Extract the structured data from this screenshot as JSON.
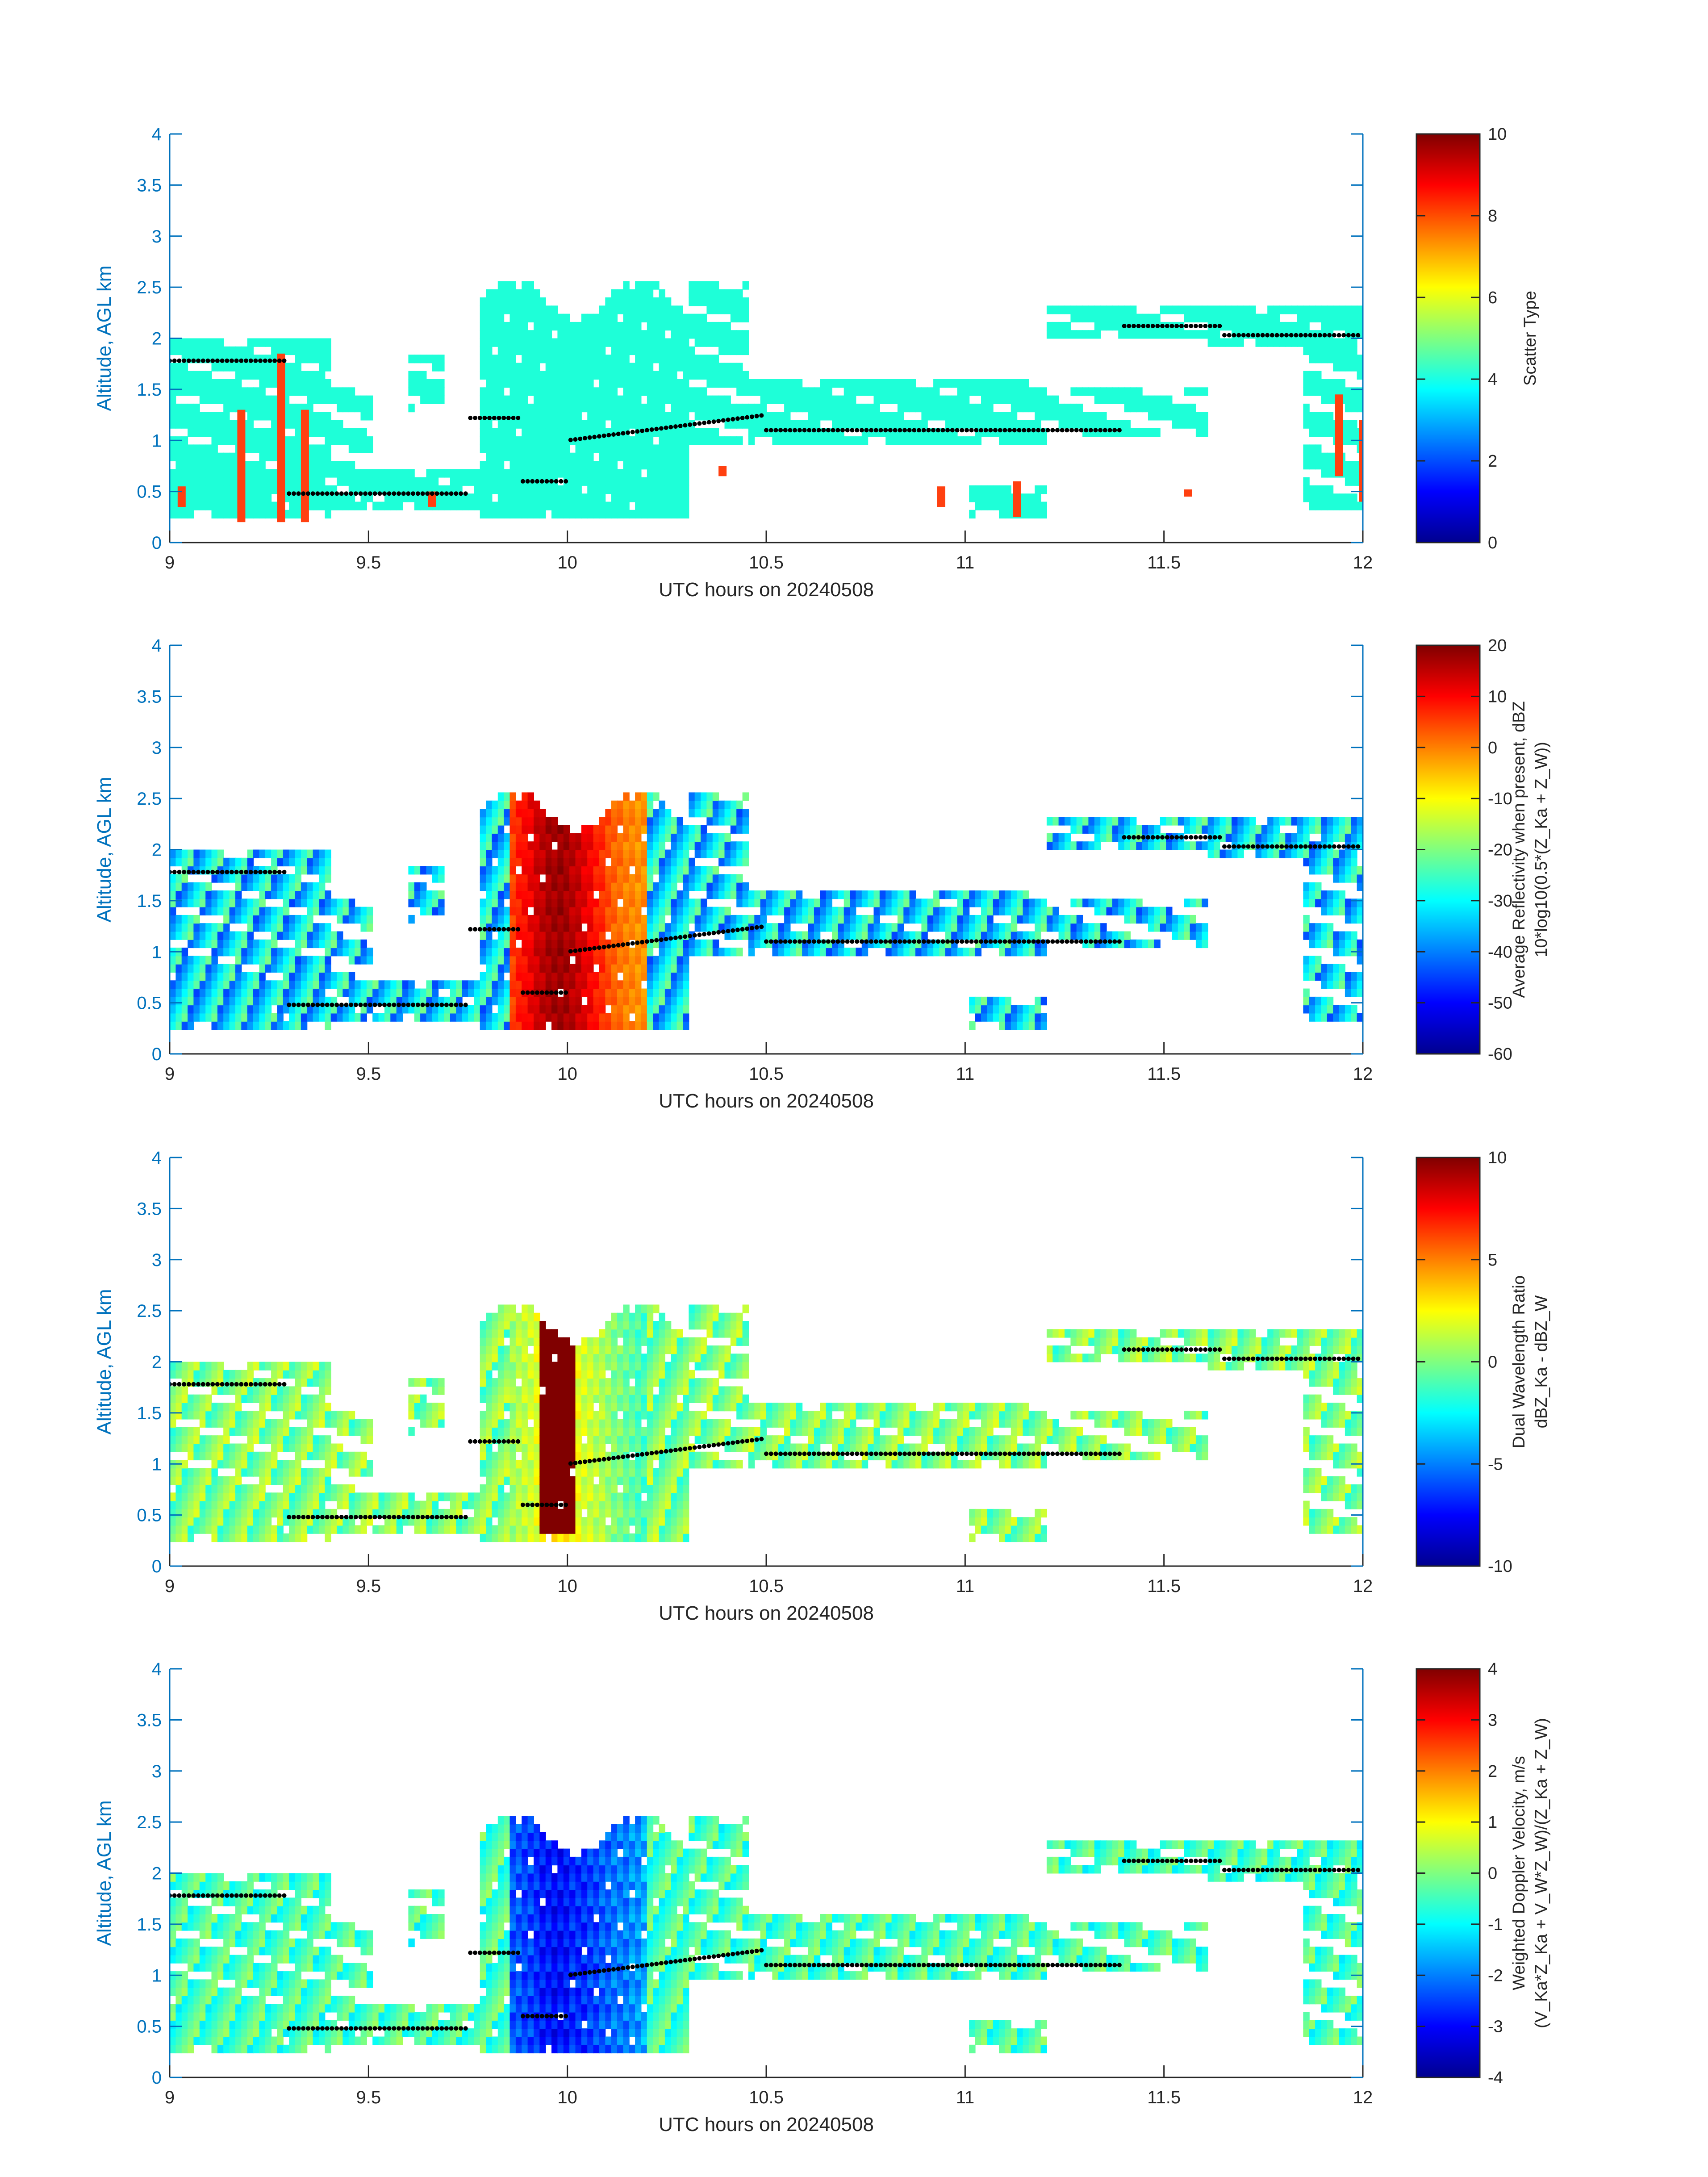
{
  "colors": {
    "axis_left": "#0072BD",
    "axis_right": "#0072BD",
    "cloud_fill": "#1effd8",
    "precip_bars": "#ff4010",
    "dots": "#000000"
  },
  "chart_data": [
    {
      "type": "heatmap",
      "xlabel": "UTC hours on 20240508",
      "ylabel": "Altitude, AGL km",
      "xlim": [
        9,
        12
      ],
      "ylim": [
        0,
        4
      ],
      "xticks": [
        "9",
        "9.5",
        "10",
        "10.5",
        "11",
        "11.5",
        "12"
      ],
      "yticks": [
        "0",
        "0.5",
        "1",
        "1.5",
        "2",
        "2.5",
        "3",
        "3.5",
        "4"
      ],
      "colorbar": {
        "label_lines": [
          "Scatter Type"
        ],
        "range": [
          0,
          10
        ],
        "ticks": [
          "0",
          "2",
          "4",
          "6",
          "8",
          "10"
        ]
      }
    },
    {
      "type": "heatmap",
      "xlabel": "UTC hours on 20240508",
      "ylabel": "Altitude, AGL km",
      "xlim": [
        9,
        12
      ],
      "ylim": [
        0,
        4
      ],
      "xticks": [
        "9",
        "9.5",
        "10",
        "10.5",
        "11",
        "11.5",
        "12"
      ],
      "yticks": [
        "0",
        "0.5",
        "1",
        "1.5",
        "2",
        "2.5",
        "3",
        "3.5",
        "4"
      ],
      "colorbar": {
        "label_lines": [
          "Average Reflectivity when present, dBZ",
          "10*log10(0.5*(Z_Ka + Z_W))"
        ],
        "range": [
          -60,
          20
        ],
        "ticks": [
          "-60",
          "-50",
          "-40",
          "-30",
          "-20",
          "-10",
          "0",
          "10",
          "20"
        ]
      }
    },
    {
      "type": "heatmap",
      "xlabel": "UTC hours on 20240508",
      "ylabel": "Altitude, AGL km",
      "xlim": [
        9,
        12
      ],
      "ylim": [
        0,
        4
      ],
      "xticks": [
        "9",
        "9.5",
        "10",
        "10.5",
        "11",
        "11.5",
        "12"
      ],
      "yticks": [
        "0",
        "0.5",
        "1",
        "1.5",
        "2",
        "2.5",
        "3",
        "3.5",
        "4"
      ],
      "colorbar": {
        "label_lines": [
          "Dual Wavelength Ratio",
          "dBZ_Ka - dBZ_W"
        ],
        "range": [
          -10,
          10
        ],
        "ticks": [
          "-10",
          "-5",
          "0",
          "5",
          "10"
        ]
      }
    },
    {
      "type": "heatmap",
      "xlabel": "UTC hours on 20240508",
      "ylabel": "Altitude, AGL km",
      "xlim": [
        9,
        12
      ],
      "ylim": [
        0,
        4
      ],
      "xticks": [
        "9",
        "9.5",
        "10",
        "10.5",
        "11",
        "11.5",
        "12"
      ],
      "yticks": [
        "0",
        "0.5",
        "1",
        "1.5",
        "2",
        "2.5",
        "3",
        "3.5",
        "4"
      ],
      "colorbar": {
        "label_lines": [
          "Weighted Doppler Velocity, m/s",
          "(V_Ka*Z_Ka + V_W*Z_W)/(Z_Ka + Z_W)"
        ],
        "range": [
          -4,
          4
        ],
        "ticks": [
          "-4",
          "-3",
          "-2",
          "-1",
          "0",
          "1",
          "2",
          "3",
          "4"
        ]
      }
    }
  ]
}
